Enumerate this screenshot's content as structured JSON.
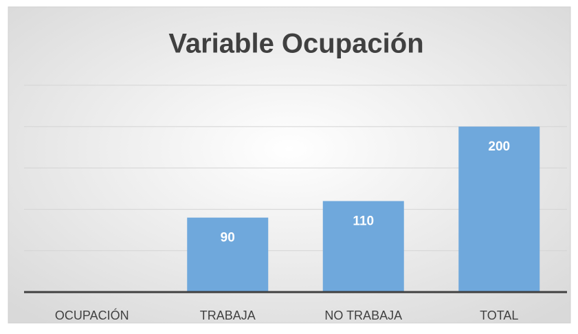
{
  "chart_data": {
    "type": "bar",
    "title": "Variable Ocupación",
    "categories": [
      "OCUPACIÓN",
      "TRABAJA",
      "NO TRABAJA",
      "TOTAL"
    ],
    "values": [
      null,
      90,
      110,
      200
    ],
    "color": "#6fa8dc",
    "ylim": [
      0,
      250
    ],
    "yticks": [
      0,
      50,
      100,
      150,
      200,
      250
    ],
    "grid": true,
    "data_labels": true
  }
}
